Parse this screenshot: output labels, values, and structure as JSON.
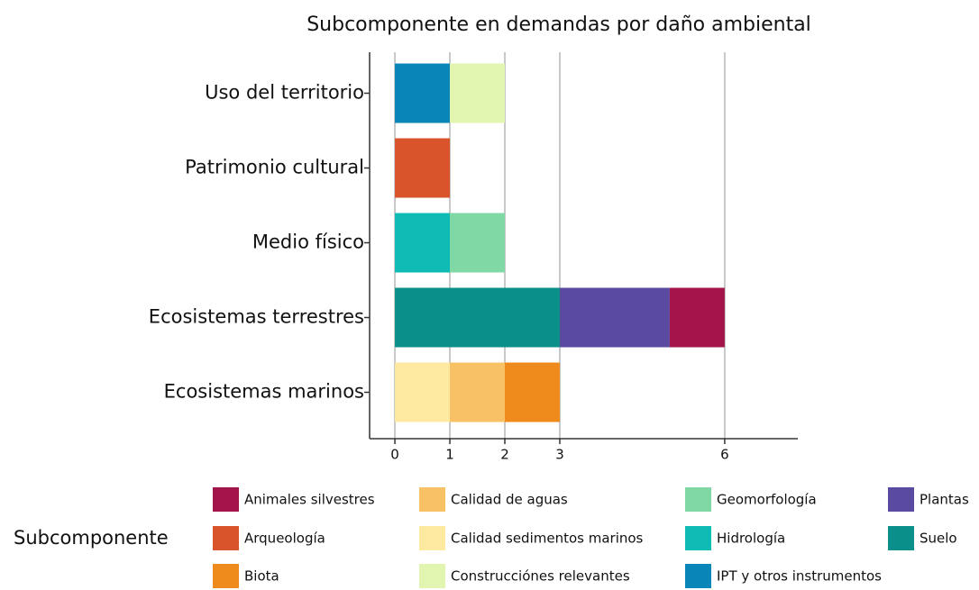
{
  "chart_data": {
    "type": "stacked_bar_horizontal",
    "title": "Subcomponente en demandas por daño ambiental",
    "categories": [
      "Uso del territorio",
      "Patrimonio cultural",
      "Medio físico",
      "Ecosistemas terrestres",
      "Ecosistemas marinos"
    ],
    "series": [
      {
        "name": "Animales silvestres",
        "color": "#a3154a",
        "values": [
          null,
          null,
          null,
          1,
          null
        ]
      },
      {
        "name": "Arqueología",
        "color": "#d9532b",
        "values": [
          null,
          1,
          null,
          null,
          null
        ]
      },
      {
        "name": "Biota",
        "color": "#ef8a1d",
        "values": [
          null,
          null,
          null,
          null,
          1
        ]
      },
      {
        "name": "Calidad de aguas",
        "color": "#f8c165",
        "values": [
          null,
          null,
          null,
          null,
          1
        ]
      },
      {
        "name": "Calidad sedimentos marinos",
        "color": "#fde9a0",
        "values": [
          null,
          null,
          null,
          null,
          1
        ]
      },
      {
        "name": "Construcciónes relevantes",
        "color": "#e2f5b0",
        "values": [
          1,
          null,
          null,
          null,
          null
        ]
      },
      {
        "name": "Geomorfología",
        "color": "#80d9a4",
        "values": [
          null,
          null,
          1,
          null,
          null
        ]
      },
      {
        "name": "Hidrología",
        "color": "#0ebcb5",
        "values": [
          null,
          null,
          1,
          null,
          null
        ]
      },
      {
        "name": "IPT y otros instrumentos",
        "color": "#0a85b8",
        "values": [
          1,
          null,
          null,
          null,
          null
        ]
      },
      {
        "name": "Plantas",
        "color": "#5a4ba0",
        "values": [
          null,
          null,
          null,
          2,
          null
        ]
      },
      {
        "name": "Suelo",
        "color": "#0a8f8a",
        "values": [
          null,
          null,
          null,
          3,
          null
        ]
      }
    ],
    "xlim": [
      -0.46,
      7.33
    ],
    "xticks": [
      0,
      1,
      2,
      3,
      6
    ],
    "grid": true,
    "legend_title": "Subcomponente",
    "legend_position": "bottom"
  }
}
